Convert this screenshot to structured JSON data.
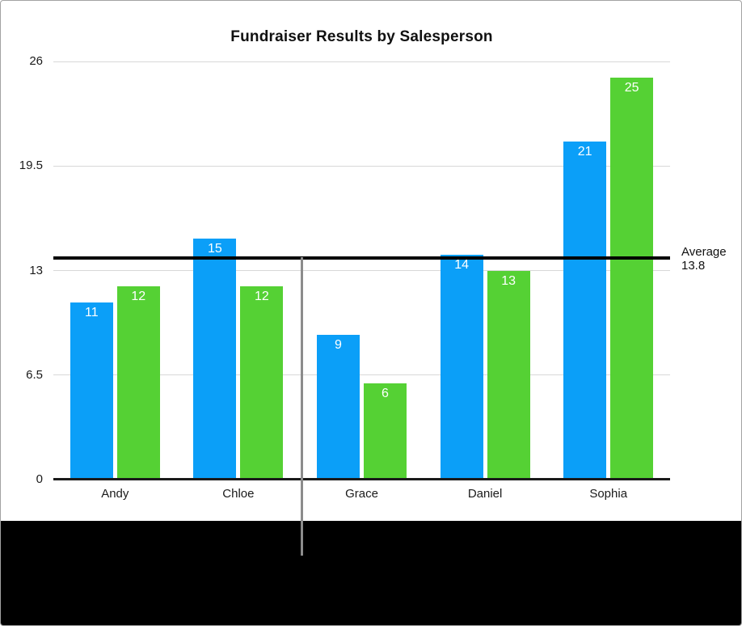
{
  "frame": {
    "background_color": "#ffffff",
    "border_color": "#a2a2a2",
    "bottom_band_color": "#000000"
  },
  "chart_data": {
    "type": "bar",
    "title": "Fundraiser Results by Salesperson",
    "categories": [
      "Andy",
      "Chloe",
      "Grace",
      "Daniel",
      "Sophia"
    ],
    "series": [
      {
        "name": "blue",
        "color": "#0b9ff8",
        "values": [
          11,
          15,
          9,
          14,
          21
        ]
      },
      {
        "name": "green",
        "color": "#55d134",
        "values": [
          12,
          12,
          6,
          13,
          25
        ]
      }
    ],
    "xlabel": "",
    "ylabel": "",
    "ylim": [
      0,
      26
    ],
    "yticks": [
      0,
      6.5,
      13,
      19.5,
      26
    ],
    "grid": true,
    "legend_position": "none",
    "bar_value_labels_color": "#ffffff",
    "average_line": {
      "label": "Average",
      "value": 13.8,
      "value_label": "13.8",
      "color": "#000000"
    },
    "annotations": {
      "callout_line": {
        "description": "vertical gray pointer line from the average line down into black band",
        "color": "#8c8c8c"
      }
    }
  }
}
